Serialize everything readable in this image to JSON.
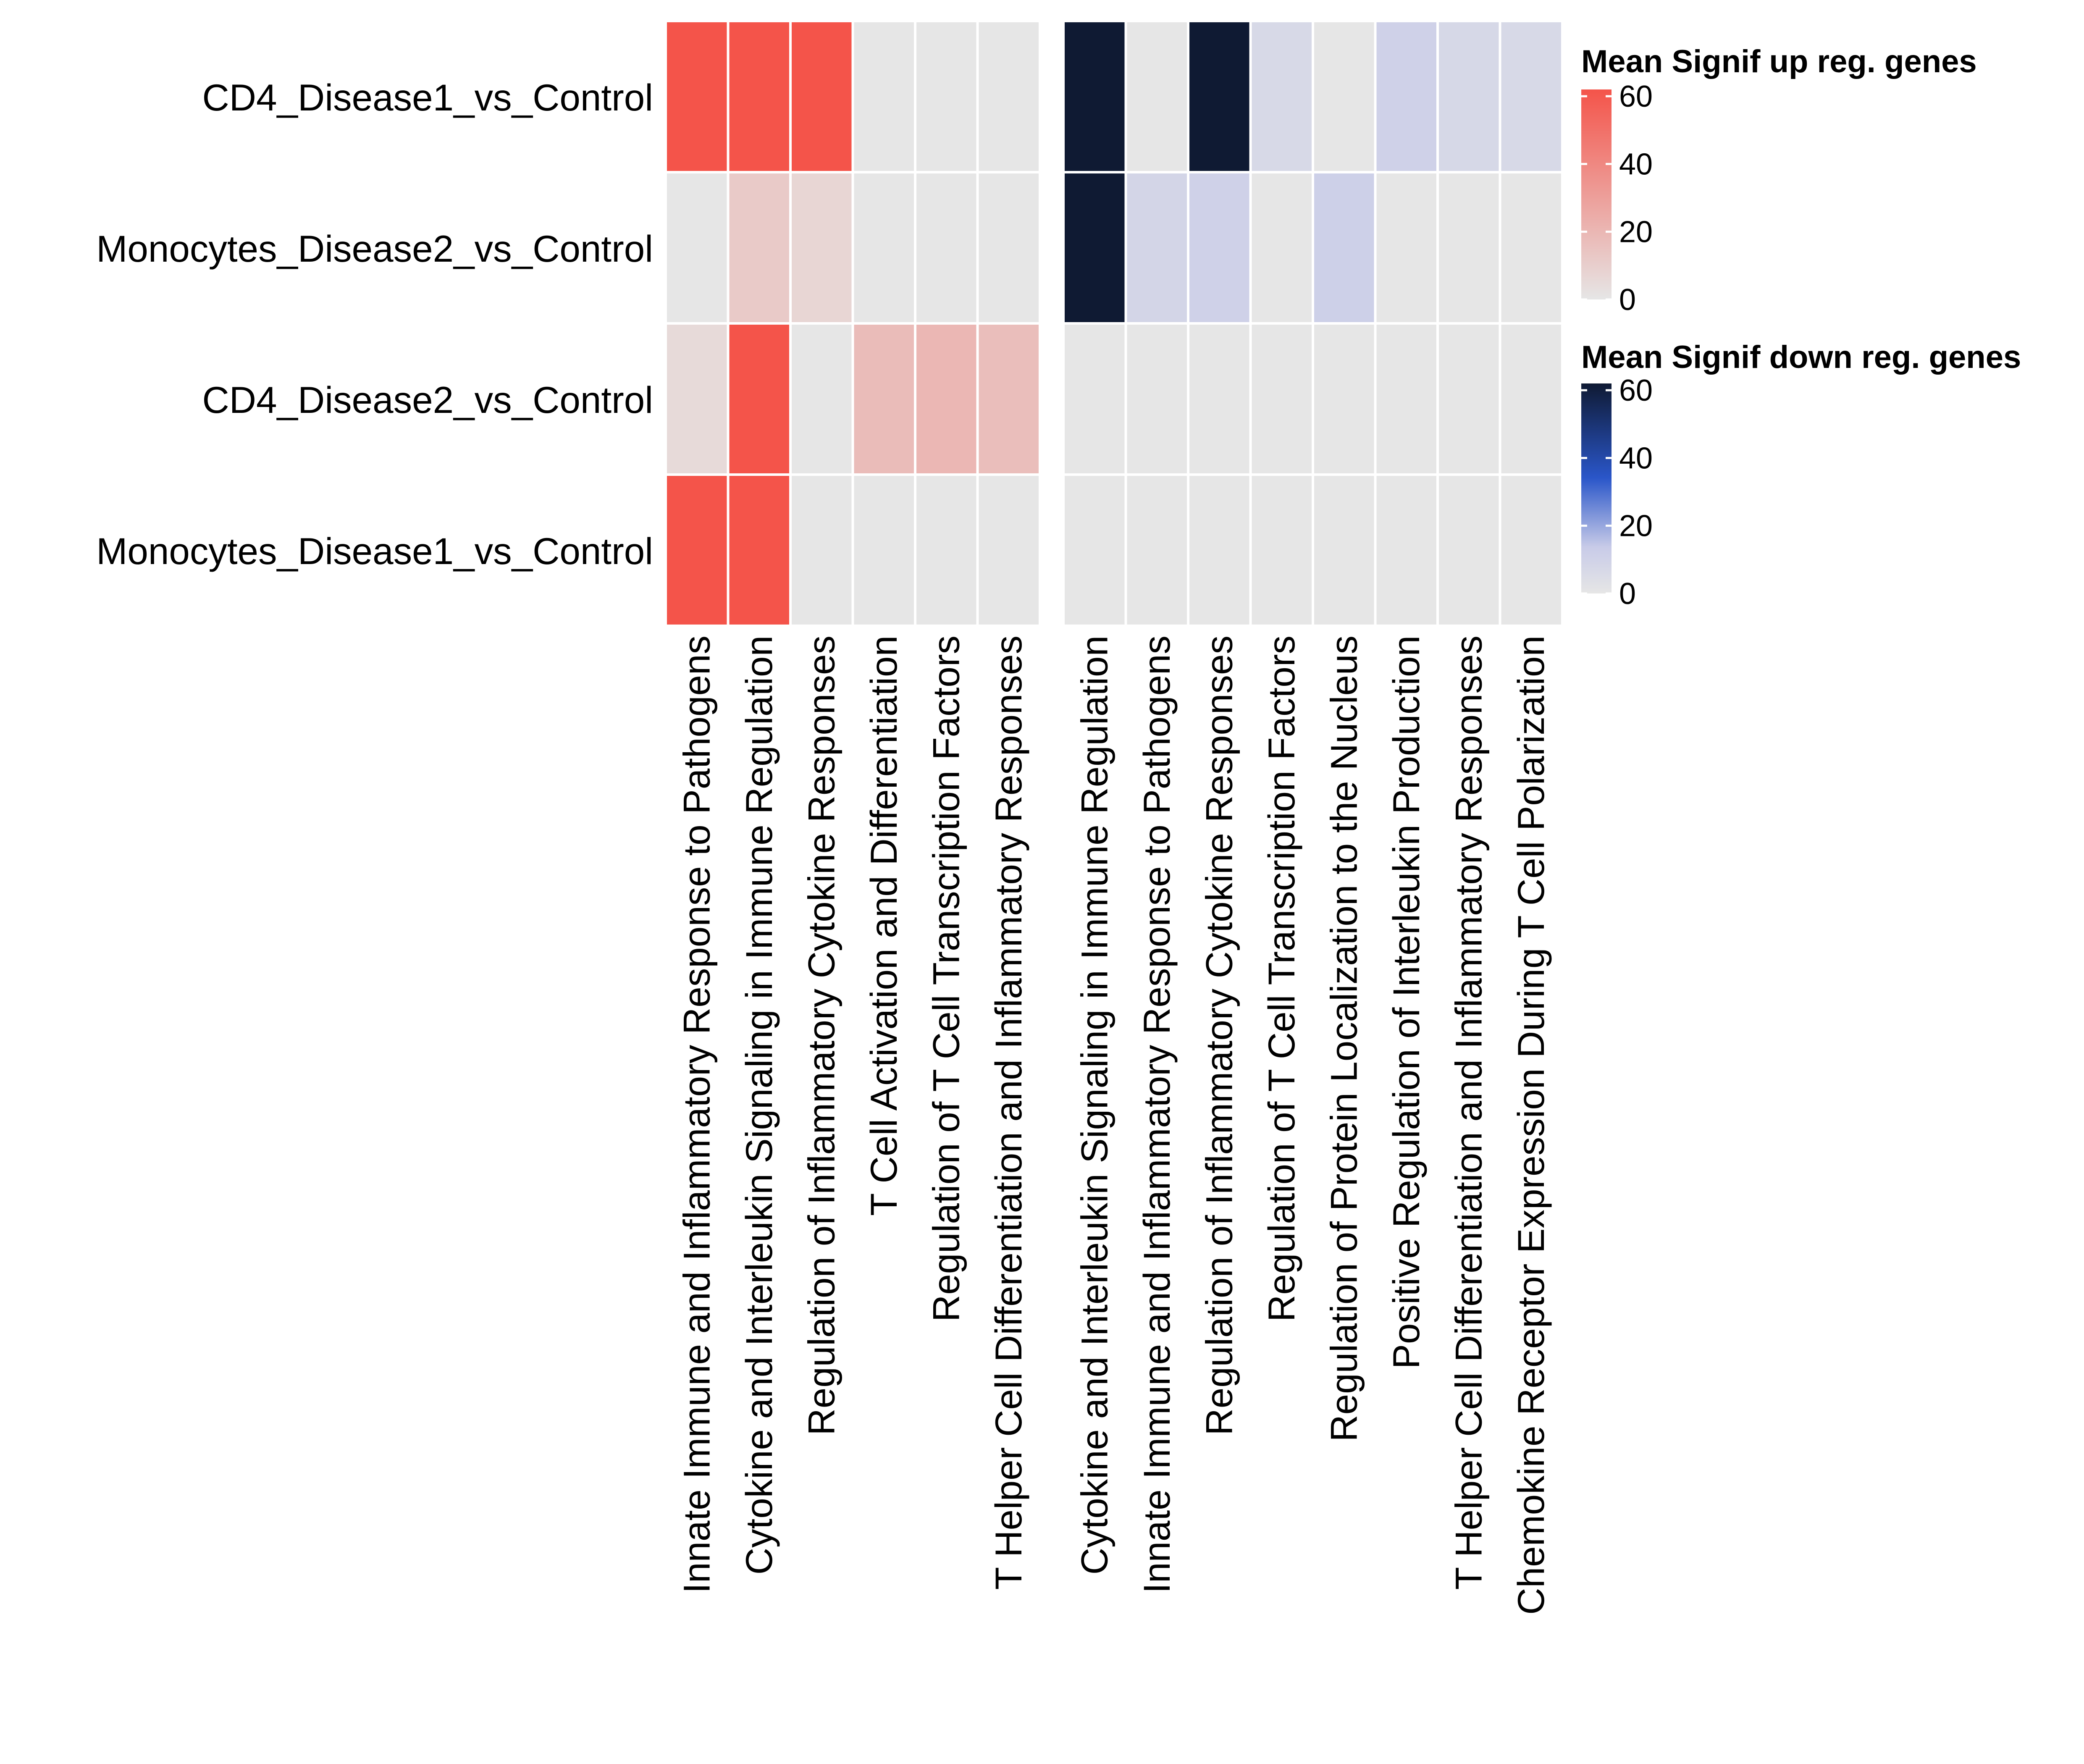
{
  "chart_data": {
    "type": "heatmap",
    "rows": [
      "CD4_Disease1_vs_Control",
      "Monocytes_Disease2_vs_Control",
      "CD4_Disease2_vs_Control",
      "Monocytes_Disease1_vs_Control"
    ],
    "panels": [
      {
        "name": "up",
        "columns": [
          "Innate Immune and Inflammatory Response to Pathogens",
          "Cytokine and Interleukin Signaling in Immune Regulation",
          "Regulation of Inflammatory Cytokine Responses",
          "T Cell Activation and Differentiation",
          "Regulation of T Cell Transcription Factors",
          "T Helper Cell Differentiation and Inflammatory Responses"
        ],
        "values": [
          [
            62,
            62,
            62,
            0,
            0,
            0
          ],
          [
            0,
            12,
            7,
            0,
            0,
            0
          ],
          [
            5,
            62,
            0,
            18,
            20,
            17
          ],
          [
            62,
            62,
            0,
            0,
            0,
            0
          ]
        ]
      },
      {
        "name": "down",
        "columns": [
          "Cytokine and Interleukin Signaling in Immune Regulation",
          "Innate Immune and Inflammatory Response to Pathogens",
          "Regulation of Inflammatory Cytokine Responses",
          "Regulation of T Cell Transcription Factors",
          "Regulation of Protein Localization to the Nucleus",
          "Positive Regulation of Interleukin Production",
          "T Helper Cell Differentiation and Inflammatory Responses",
          "Chemokine Receptor Expression During T Cell Polarization"
        ],
        "values": [
          [
            62,
            0,
            62,
            10,
            0,
            16,
            11,
            10
          ],
          [
            62,
            13,
            16,
            0,
            17,
            0,
            0,
            0
          ],
          [
            0,
            0,
            0,
            0,
            0,
            0,
            0,
            0
          ],
          [
            0,
            0,
            0,
            0,
            0,
            0,
            0,
            0
          ]
        ]
      }
    ],
    "legends": [
      {
        "title": "Mean Signif up reg. genes",
        "ticks": [
          "60",
          "40",
          "20",
          "0"
        ],
        "tick_values": [
          60,
          40,
          20,
          0
        ],
        "range": [
          0,
          62
        ],
        "colors": [
          "#E6E6E6",
          "#F4544A"
        ]
      },
      {
        "title": "Mean Signif down reg. genes",
        "ticks": [
          "60",
          "40",
          "20",
          "0"
        ],
        "tick_values": [
          60,
          40,
          20,
          0
        ],
        "range": [
          0,
          62
        ],
        "colors": [
          "#E6E6E6",
          "#C8CBE8",
          "#2A56C9",
          "#0F1A33"
        ]
      }
    ],
    "grid": false,
    "legend_position": "right"
  }
}
